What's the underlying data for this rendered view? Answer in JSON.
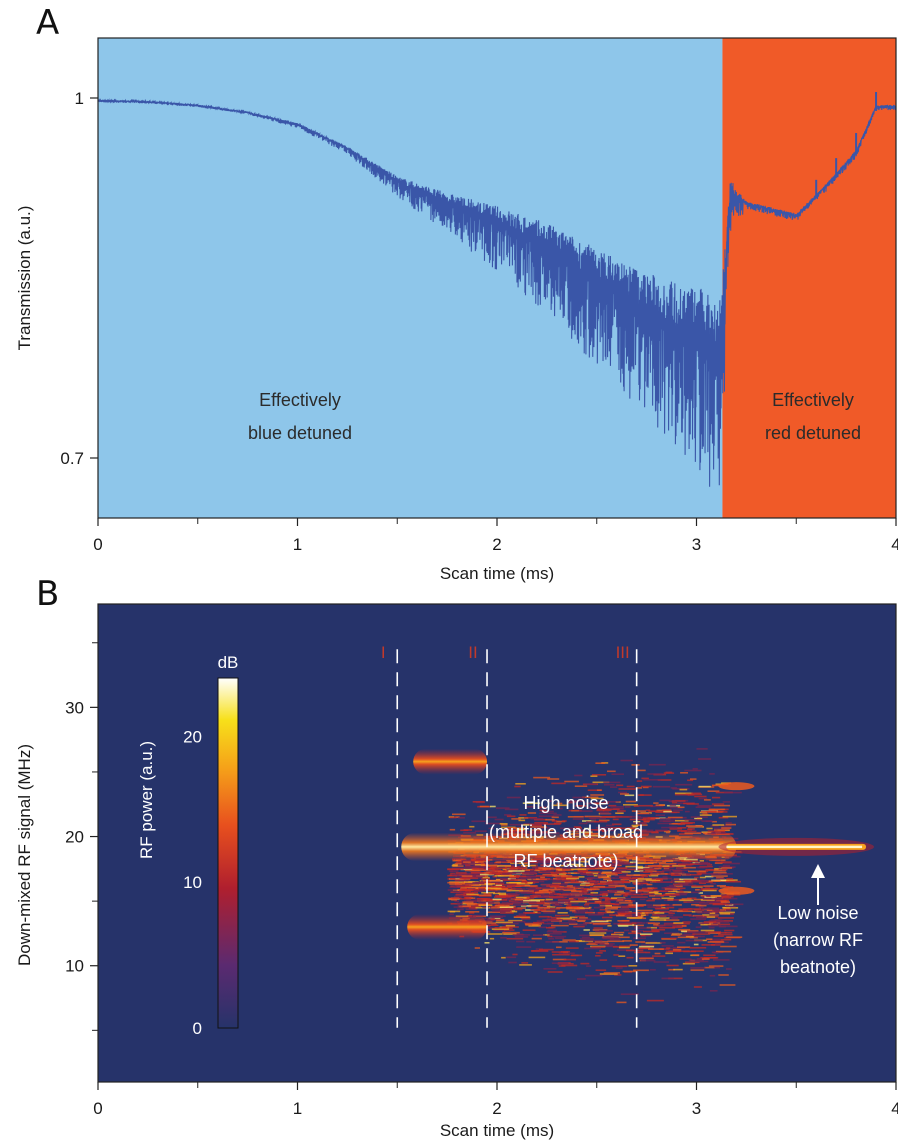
{
  "chart_data": [
    {
      "panel": "A",
      "type": "line",
      "xlabel": "Scan time (ms)",
      "ylabel": "Transmission (a.u.)",
      "xlim": [
        0,
        4
      ],
      "ylim": [
        0.65,
        1.05
      ],
      "xticks": [
        0,
        1,
        2,
        3,
        4
      ],
      "yticks": [
        0.7,
        1
      ],
      "ytick_labels": [
        "0.7",
        "1"
      ],
      "series": [
        {
          "x": [
            0,
            0.25,
            0.5,
            0.75,
            1.0,
            1.25,
            1.5,
            1.75,
            2.0,
            2.25,
            2.5,
            2.75,
            3.0,
            3.12,
            3.17,
            3.25,
            3.5,
            3.6,
            3.7,
            3.8,
            3.9,
            4.0
          ],
          "y": [
            0.998,
            0.997,
            0.994,
            0.988,
            0.978,
            0.958,
            0.93,
            0.912,
            0.895,
            0.875,
            0.848,
            0.822,
            0.8,
            0.79,
            0.92,
            0.912,
            0.902,
            0.918,
            0.936,
            0.955,
            0.993,
            0.993
          ],
          "noise_amplitude": [
            0.001,
            0.001,
            0.001,
            0.001,
            0.002,
            0.003,
            0.008,
            0.015,
            0.025,
            0.035,
            0.045,
            0.055,
            0.07,
            0.08,
            0.02,
            0.003,
            0.003,
            0.003,
            0.003,
            0.003,
            0.002,
            0.002
          ]
        }
      ],
      "regions": [
        {
          "x": [
            0,
            3.13
          ],
          "color": "#8ec6ea",
          "label_lines": [
            "Effectively",
            "blue detuned"
          ]
        },
        {
          "x": [
            3.13,
            4.0
          ],
          "color": "#f05a28",
          "label_lines": [
            "Effectively",
            "red detuned"
          ]
        }
      ],
      "line_color": "#3a56a8"
    },
    {
      "panel": "B",
      "type": "heatmap",
      "xlabel": "Scan time (ms)",
      "ylabel": "Down-mixed RF signal (MHz)",
      "xlim": [
        0,
        4
      ],
      "ylim": [
        1,
        38
      ],
      "xticks": [
        0,
        1,
        2,
        3,
        4
      ],
      "yticks": [
        10,
        20,
        30
      ],
      "ytick_labels": [
        "10",
        "20",
        "30"
      ],
      "background_color": "#26336a",
      "colorbar": {
        "title": "dB",
        "label": "RF power (a.u.)",
        "range": [
          0,
          24
        ],
        "ticks": [
          0,
          10,
          20
        ],
        "tick_labels": [
          "0",
          "10",
          "20"
        ],
        "colors": [
          "#26336a",
          "#5b2a70",
          "#b01f2e",
          "#e8501e",
          "#f5a019",
          "#f7e01a",
          "#ffffff"
        ]
      },
      "features": [
        {
          "kind": "band",
          "x": [
            1.52,
            3.2
          ],
          "center_mhz": 19.2,
          "width_mhz": 1.1
        },
        {
          "kind": "band",
          "x": [
            1.58,
            1.95
          ],
          "center_mhz": 25.8,
          "width_mhz": 1.0
        },
        {
          "kind": "band",
          "x": [
            1.55,
            1.95
          ],
          "center_mhz": 13.0,
          "width_mhz": 1.0
        },
        {
          "kind": "broad",
          "x": [
            1.95,
            3.15
          ],
          "mhz": [
            6,
            28
          ]
        },
        {
          "kind": "narrow",
          "x": [
            3.15,
            3.85
          ],
          "center_mhz": 19.2,
          "width_mhz": 0.6
        }
      ],
      "markers": [
        {
          "x": 1.5,
          "label": "I"
        },
        {
          "x": 1.95,
          "label": "II"
        },
        {
          "x": 2.7,
          "label": "III"
        }
      ],
      "annotations": [
        {
          "lines": [
            "High noise",
            "(multiple and broad",
            "RF beatnote)"
          ]
        },
        {
          "lines": [
            "Low noise",
            "(narrow RF",
            "beatnote)"
          ]
        }
      ]
    }
  ],
  "labels": {
    "panel_a": "A",
    "panel_b": "B",
    "xlabel_a": "Scan time (ms)",
    "ylabel_a": "Transmission (a.u.)",
    "xlabel_b": "Scan time (ms)",
    "ylabel_b": "Down-mixed RF signal (MHz)",
    "blue_region_line1": "Effectively",
    "blue_region_line2": "blue detuned",
    "red_region_line1": "Effectively",
    "red_region_line2": "red detuned",
    "high_noise_line1": "High noise",
    "high_noise_line2": "(multiple and broad",
    "high_noise_line3": "RF beatnote)",
    "low_noise_line1": "Low noise",
    "low_noise_line2": "(narrow RF",
    "low_noise_line3": "beatnote)",
    "colorbar_title": "dB",
    "colorbar_label": "RF power (a.u.)"
  }
}
